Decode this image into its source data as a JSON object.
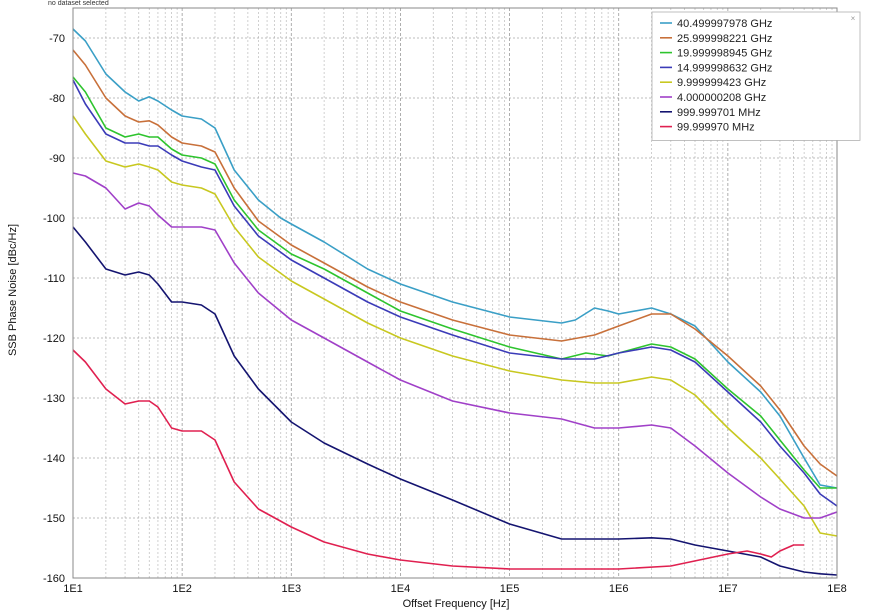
{
  "status_text": "no dataset selected",
  "chart_data": {
    "type": "line",
    "title": "",
    "xlabel": "Offset Frequency [Hz]",
    "ylabel": "SSB Phase Noise [dBc/Hz]",
    "xscale": "log",
    "xlim": [
      10,
      100000000
    ],
    "ylim": [
      -160,
      -65
    ],
    "xticks": [
      10,
      100,
      1000,
      10000,
      100000,
      1000000,
      10000000,
      100000000
    ],
    "xtick_labels": [
      "1E1",
      "1E2",
      "1E3",
      "1E4",
      "1E5",
      "1E6",
      "1E7",
      "1E8"
    ],
    "yticks": [
      -70,
      -80,
      -90,
      -100,
      -110,
      -120,
      -130,
      -140,
      -150,
      -160
    ],
    "ytick_labels": [
      "-70",
      "-80",
      "-90",
      "-100",
      "-110",
      "-120",
      "-130",
      "-140",
      "-150",
      "-160"
    ],
    "grid": true,
    "legend_position": "top-right",
    "series": [
      {
        "name": "40.499997978 GHz",
        "color": "#3a9fc6",
        "x": [
          10,
          13,
          20,
          30,
          40,
          50,
          60,
          80,
          100,
          150,
          200,
          300,
          500,
          800,
          1000,
          2000,
          5000,
          10000,
          30000,
          100000,
          300000,
          400000,
          600000,
          800000,
          1000000,
          2000000,
          3000000,
          5000000,
          10000000,
          20000000,
          30000000,
          50000000,
          70000000,
          100000000
        ],
        "y": [
          -68.5,
          -70.5,
          -76,
          -79,
          -80.5,
          -79.8,
          -80.5,
          -82,
          -83,
          -83.5,
          -85,
          -92,
          -97,
          -100,
          -101,
          -104,
          -108.5,
          -111,
          -114,
          -116.5,
          -117.5,
          -117,
          -115,
          -115.5,
          -116,
          -115,
          -116,
          -118,
          -124,
          -129,
          -133,
          -140,
          -144.5,
          -145
        ]
      },
      {
        "name": "25.999998221 GHz",
        "color": "#c8703a",
        "x": [
          10,
          13,
          20,
          30,
          40,
          50,
          60,
          80,
          100,
          150,
          200,
          300,
          500,
          1000,
          2000,
          5000,
          10000,
          30000,
          100000,
          300000,
          600000,
          1000000,
          2000000,
          3000000,
          5000000,
          10000000,
          20000000,
          30000000,
          50000000,
          70000000,
          100000000
        ],
        "y": [
          -72,
          -74.5,
          -80,
          -83,
          -84,
          -83.8,
          -84.5,
          -86.5,
          -87.5,
          -88,
          -89,
          -95,
          -100.5,
          -104.5,
          -107.5,
          -111.5,
          -114,
          -117,
          -119.5,
          -120.5,
          -119.5,
          -118,
          -116,
          -116,
          -118.5,
          -123,
          -128,
          -132,
          -138,
          -141,
          -143
        ]
      },
      {
        "name": "19.999998945 GHz",
        "color": "#2ec42e",
        "x": [
          10,
          13,
          20,
          30,
          40,
          50,
          60,
          80,
          100,
          150,
          200,
          300,
          500,
          1000,
          2000,
          5000,
          10000,
          30000,
          100000,
          300000,
          500000,
          800000,
          1000000,
          2000000,
          3000000,
          5000000,
          10000000,
          20000000,
          30000000,
          50000000,
          70000000,
          100000000
        ],
        "y": [
          -76.5,
          -79,
          -85,
          -86.5,
          -86,
          -86.5,
          -86.5,
          -88.5,
          -89.5,
          -90,
          -91,
          -97,
          -102,
          -106,
          -108.5,
          -112.5,
          -115.5,
          -118.5,
          -121.5,
          -123.5,
          -122.5,
          -123,
          -122.5,
          -121,
          -121.5,
          -123.5,
          -128.5,
          -133,
          -137,
          -142,
          -145,
          -145
        ]
      },
      {
        "name": "14.999998632 GHz",
        "color": "#3b3bb8",
        "x": [
          10,
          13,
          20,
          30,
          40,
          50,
          60,
          80,
          100,
          150,
          200,
          300,
          500,
          1000,
          2000,
          5000,
          10000,
          30000,
          100000,
          300000,
          600000,
          1000000,
          2000000,
          3000000,
          5000000,
          10000000,
          20000000,
          30000000,
          50000000,
          70000000,
          100000000
        ],
        "y": [
          -77,
          -81,
          -86,
          -87.5,
          -87.5,
          -88,
          -88,
          -89.5,
          -90.5,
          -91.5,
          -92,
          -98,
          -103,
          -107,
          -110,
          -114,
          -116.5,
          -119.5,
          -122.5,
          -123.5,
          -123.5,
          -122.5,
          -121.5,
          -122,
          -124,
          -129,
          -134,
          -138,
          -142.5,
          -146,
          -148
        ]
      },
      {
        "name": "9.999999423 GHz",
        "color": "#c8c820",
        "x": [
          10,
          13,
          20,
          30,
          40,
          50,
          60,
          80,
          100,
          150,
          200,
          300,
          500,
          1000,
          2000,
          5000,
          10000,
          30000,
          100000,
          300000,
          600000,
          1000000,
          2000000,
          3000000,
          5000000,
          10000000,
          20000000,
          30000000,
          50000000,
          70000000,
          100000000
        ],
        "y": [
          -83,
          -86,
          -90.5,
          -91.5,
          -91,
          -91.5,
          -92,
          -94,
          -94.5,
          -95,
          -96,
          -101.5,
          -106.5,
          -110.5,
          -113.5,
          -117.5,
          -120,
          -123,
          -125.5,
          -127,
          -127.5,
          -127.5,
          -126.5,
          -127,
          -129.5,
          -135,
          -140,
          -143.5,
          -148,
          -152.5,
          -153
        ]
      },
      {
        "name": "4.000000208 GHz",
        "color": "#a040c8",
        "x": [
          10,
          13,
          20,
          30,
          40,
          50,
          60,
          80,
          100,
          150,
          200,
          300,
          500,
          1000,
          2000,
          5000,
          10000,
          30000,
          100000,
          300000,
          600000,
          1000000,
          2000000,
          3000000,
          5000000,
          10000000,
          20000000,
          30000000,
          50000000,
          70000000,
          100000000
        ],
        "y": [
          -92.5,
          -93,
          -95,
          -98.5,
          -97.5,
          -98,
          -99.5,
          -101.5,
          -101.5,
          -101.5,
          -102,
          -107.5,
          -112.5,
          -117,
          -120,
          -124,
          -127,
          -130.5,
          -132.5,
          -133.5,
          -135,
          -135,
          -134.5,
          -135,
          -138,
          -142.5,
          -146.5,
          -148.5,
          -150,
          -150,
          -149
        ]
      },
      {
        "name": "999.999701 MHz",
        "color": "#141470",
        "x": [
          10,
          13,
          20,
          30,
          40,
          50,
          60,
          80,
          100,
          150,
          200,
          300,
          500,
          1000,
          2000,
          5000,
          10000,
          30000,
          100000,
          300000,
          500000,
          1000000,
          2000000,
          3000000,
          5000000,
          10000000,
          20000000,
          30000000,
          50000000,
          70000000,
          100000000
        ],
        "y": [
          -101.5,
          -104,
          -108.5,
          -109.5,
          -109,
          -109.5,
          -111,
          -114,
          -114,
          -114.5,
          -116,
          -123,
          -128.5,
          -134,
          -137.5,
          -141,
          -143.5,
          -147,
          -151,
          -153.5,
          -153.5,
          -153.5,
          -153.3,
          -153.5,
          -154.5,
          -155.5,
          -156.5,
          -158,
          -159,
          -159.3,
          -159.5
        ]
      },
      {
        "name": "99.999970 MHz",
        "color": "#e02050",
        "x": [
          10,
          13,
          20,
          30,
          40,
          50,
          60,
          80,
          100,
          150,
          200,
          300,
          500,
          1000,
          2000,
          5000,
          10000,
          30000,
          100000,
          300000,
          1000000,
          3000000,
          10000000,
          15000000,
          20000000,
          25000000,
          30000000,
          40000000,
          50000000
        ],
        "y": [
          -122,
          -124,
          -128.5,
          -131,
          -130.5,
          -130.5,
          -131.5,
          -135,
          -135.5,
          -135.5,
          -137,
          -144,
          -148.5,
          -151.5,
          -154,
          -156,
          -157,
          -158,
          -158.5,
          -158.5,
          -158.5,
          -158,
          -156,
          -155.5,
          -156,
          -156.5,
          -155.5,
          -154.5,
          -154.5
        ]
      }
    ]
  }
}
